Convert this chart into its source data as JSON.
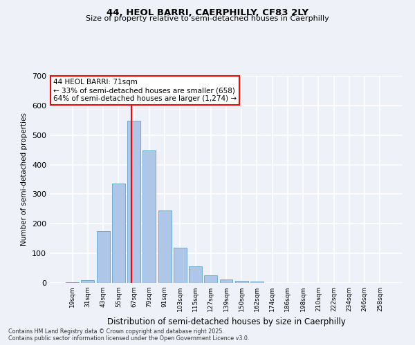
{
  "title_line1": "44, HEOL BARRI, CAERPHILLY, CF83 2LY",
  "title_line2": "Size of property relative to semi-detached houses in Caerphilly",
  "xlabel": "Distribution of semi-detached houses by size in Caerphilly",
  "ylabel": "Number of semi-detached properties",
  "bar_labels": [
    "19sqm",
    "31sqm",
    "43sqm",
    "55sqm",
    "67sqm",
    "79sqm",
    "91sqm",
    "103sqm",
    "115sqm",
    "127sqm",
    "139sqm",
    "150sqm",
    "162sqm",
    "174sqm",
    "186sqm",
    "198sqm",
    "210sqm",
    "222sqm",
    "234sqm",
    "246sqm",
    "258sqm"
  ],
  "bar_values": [
    3,
    10,
    175,
    335,
    548,
    448,
    244,
    120,
    55,
    26,
    12,
    8,
    5,
    0,
    0,
    0,
    0,
    0,
    0,
    0,
    0
  ],
  "bar_color": "#aec6e8",
  "bar_edgecolor": "#6bacd4",
  "vline_color": "red",
  "ylim": [
    0,
    700
  ],
  "yticks": [
    0,
    100,
    200,
    300,
    400,
    500,
    600,
    700
  ],
  "annotation_text": "44 HEOL BARRI: 71sqm\n← 33% of semi-detached houses are smaller (658)\n64% of semi-detached houses are larger (1,274) →",
  "background_color": "#eef2f8",
  "footer_line1": "Contains HM Land Registry data © Crown copyright and database right 2025.",
  "footer_line2": "Contains public sector information licensed under the Open Government Licence v3.0."
}
